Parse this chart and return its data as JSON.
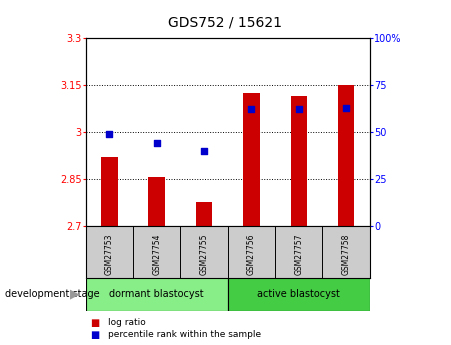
{
  "title": "GDS752 / 15621",
  "samples": [
    "GSM27753",
    "GSM27754",
    "GSM27755",
    "GSM27756",
    "GSM27757",
    "GSM27758"
  ],
  "log_ratio": [
    2.92,
    2.855,
    2.775,
    3.125,
    3.115,
    3.15
  ],
  "percentile_rank": [
    49,
    44,
    40,
    62,
    62,
    63
  ],
  "bar_baseline": 2.7,
  "ylim_left": [
    2.7,
    3.3
  ],
  "ylim_right": [
    0,
    100
  ],
  "yticks_left": [
    2.7,
    2.85,
    3.0,
    3.15,
    3.3
  ],
  "ytick_labels_left": [
    "2.7",
    "2.85",
    "3",
    "3.15",
    "3.3"
  ],
  "yticks_right": [
    0,
    25,
    50,
    75,
    100
  ],
  "ytick_labels_right": [
    "0",
    "25",
    "50",
    "75",
    "100%"
  ],
  "hlines": [
    2.85,
    3.0,
    3.15
  ],
  "bar_color": "#cc0000",
  "dot_color": "#0000cc",
  "bar_width": 0.35,
  "groups": [
    {
      "label": "dormant blastocyst",
      "indices": [
        0,
        1,
        2
      ],
      "color": "#88ee88"
    },
    {
      "label": "active blastocyst",
      "indices": [
        3,
        4,
        5
      ],
      "color": "#44cc44"
    }
  ],
  "group_label": "development stage",
  "legend_items": [
    {
      "label": "log ratio",
      "color": "#cc0000"
    },
    {
      "label": "percentile rank within the sample",
      "color": "#0000cc"
    }
  ],
  "tick_area_bg": "#cccccc",
  "title_fontsize": 10,
  "tick_fontsize": 7,
  "label_fontsize": 7
}
